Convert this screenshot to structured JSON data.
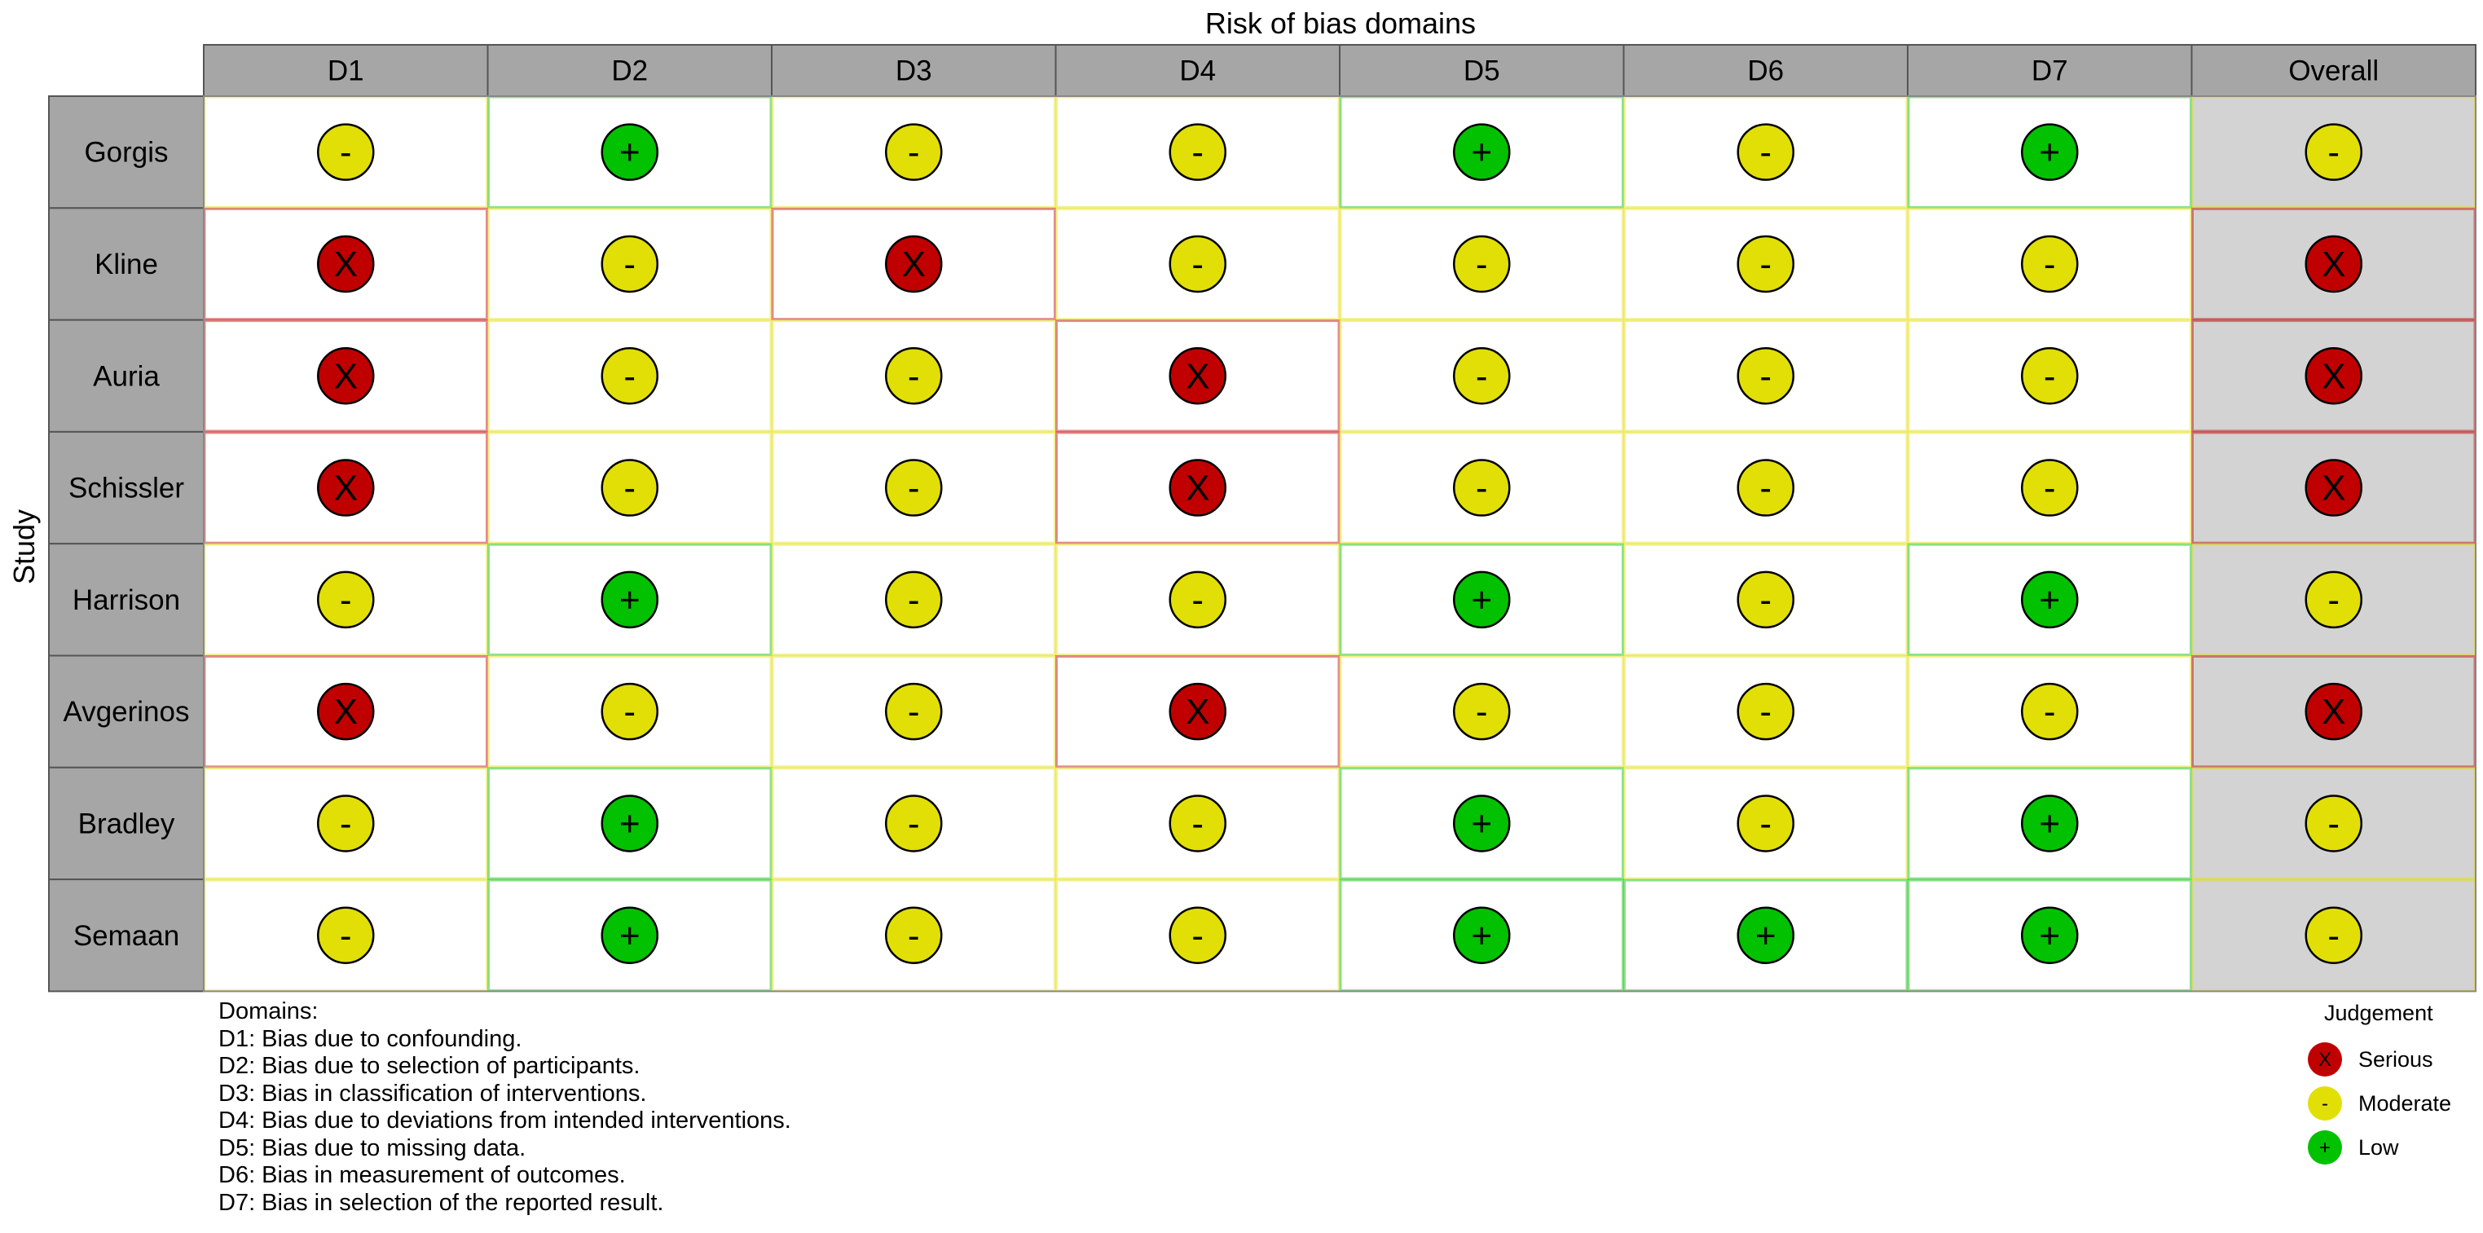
{
  "chart_data": {
    "type": "heatmap",
    "title": "",
    "xlabel": "Risk of bias domains",
    "ylabel": "Study",
    "columns": [
      "D1",
      "D2",
      "D3",
      "D4",
      "D5",
      "D6",
      "D7",
      "Overall"
    ],
    "studies": [
      "Gorgis",
      "Kline",
      "Auria",
      "Schissler",
      "Harrison",
      "Avgerinos",
      "Bradley",
      "Semaan"
    ],
    "judgements": [
      [
        "Moderate",
        "Low",
        "Moderate",
        "Moderate",
        "Low",
        "Moderate",
        "Low",
        "Moderate"
      ],
      [
        "Serious",
        "Moderate",
        "Serious",
        "Moderate",
        "Moderate",
        "Moderate",
        "Moderate",
        "Serious"
      ],
      [
        "Serious",
        "Moderate",
        "Moderate",
        "Serious",
        "Moderate",
        "Moderate",
        "Moderate",
        "Serious"
      ],
      [
        "Serious",
        "Moderate",
        "Moderate",
        "Serious",
        "Moderate",
        "Moderate",
        "Moderate",
        "Serious"
      ],
      [
        "Moderate",
        "Low",
        "Moderate",
        "Moderate",
        "Low",
        "Moderate",
        "Low",
        "Moderate"
      ],
      [
        "Serious",
        "Moderate",
        "Moderate",
        "Serious",
        "Moderate",
        "Moderate",
        "Moderate",
        "Serious"
      ],
      [
        "Moderate",
        "Low",
        "Moderate",
        "Moderate",
        "Low",
        "Moderate",
        "Low",
        "Moderate"
      ],
      [
        "Moderate",
        "Low",
        "Moderate",
        "Moderate",
        "Low",
        "Low",
        "Low",
        "Moderate"
      ]
    ],
    "symbols": {
      "Serious": "X",
      "Moderate": "-",
      "Low": "+"
    },
    "colors": {
      "Serious": "#c00000",
      "Moderate": "#e2df07",
      "Low": "#02c100",
      "header_bg": "#a6a6a6",
      "overall_bg": "#d3d3d3"
    }
  },
  "domains_key": {
    "title": "Domains:",
    "items": [
      "D1: Bias due to confounding.",
      "D2: Bias due to selection of participants.",
      "D3: Bias in classification of interventions.",
      "D4: Bias due to deviations from intended interventions.",
      "D5: Bias due to missing data.",
      "D6: Bias in measurement of outcomes.",
      "D7: Bias in selection of the reported result."
    ]
  },
  "legend": {
    "title": "Judgement",
    "items": [
      {
        "label": "Serious",
        "level": "Serious",
        "symbol": "X"
      },
      {
        "label": "Moderate",
        "level": "Moderate",
        "symbol": "-"
      },
      {
        "label": "Low",
        "level": "Low",
        "symbol": "+"
      }
    ]
  }
}
